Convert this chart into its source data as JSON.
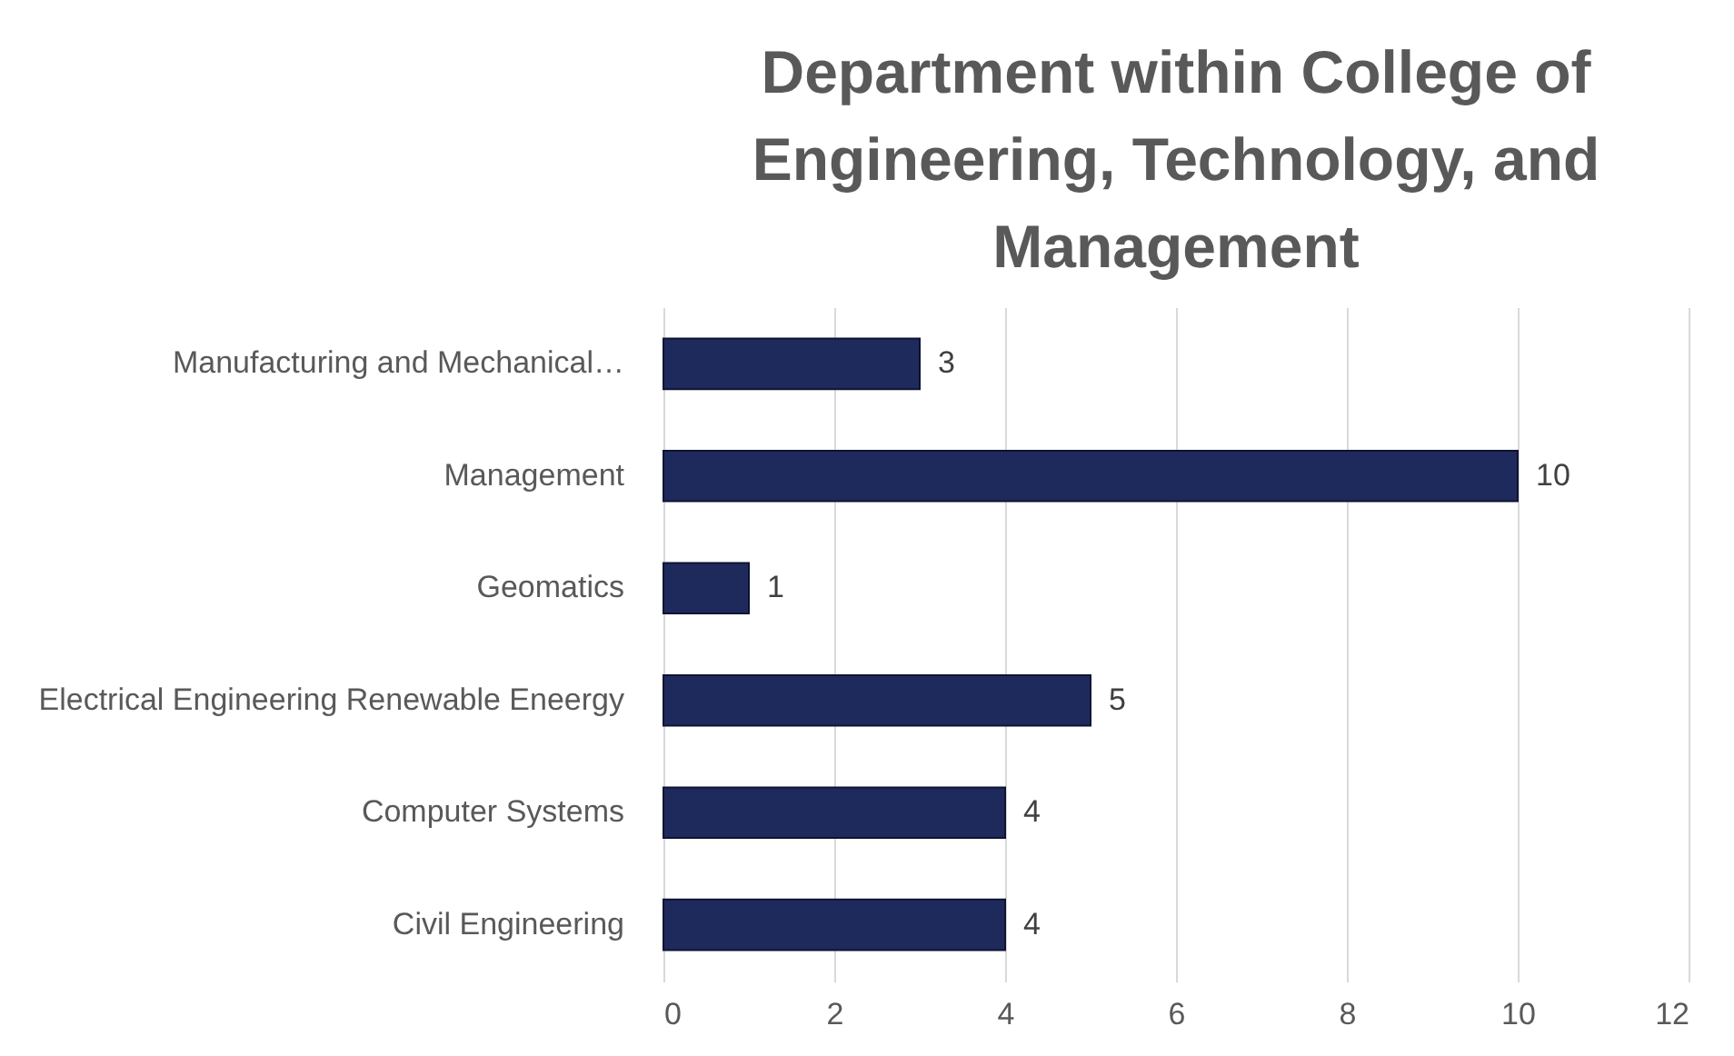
{
  "chart_data": {
    "type": "bar",
    "orientation": "horizontal",
    "title": "Department within College of Engineering, Technology, and Management",
    "categories": [
      "Manufacturing and Mechanical…",
      "Management",
      "Geomatics",
      "Electrical Engineering Renewable Eneergy",
      "Computer Systems",
      "Civil Engineering"
    ],
    "values": [
      3,
      10,
      1,
      5,
      4,
      4
    ],
    "color": "#1f2a5c",
    "xlim": [
      0,
      12
    ],
    "xticks": [
      0,
      2,
      4,
      6,
      8,
      10,
      12
    ],
    "grid": "x",
    "data_labels": true
  }
}
